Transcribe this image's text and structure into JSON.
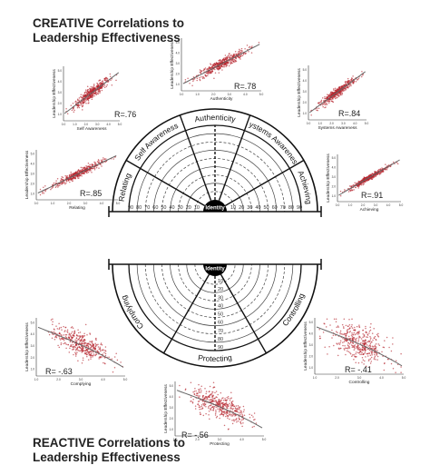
{
  "titles": {
    "creative_line1": "CREATIVE Correlations to",
    "creative_line2": "Leadership Effectiveness",
    "reactive_line1": "REACTIVE Correlations to",
    "reactive_line2": "Leadership Effectiveness"
  },
  "wheel_top": {
    "sectors": [
      "Relating",
      "Self Awareness",
      "Authenticity",
      "Systems Awareness",
      "Achieving"
    ],
    "center_label": "Identity",
    "scale_left": [
      "90",
      "80",
      "70",
      "60",
      "50",
      "40",
      "30",
      "20",
      "10"
    ],
    "scale_right": [
      "10",
      "20",
      "30",
      "40",
      "50",
      "60",
      "70",
      "80",
      "90"
    ]
  },
  "wheel_bottom": {
    "sectors": [
      "Complying",
      "Protecting",
      "Controlling"
    ],
    "center_label": "Identity",
    "scale_down": [
      "10",
      "20",
      "30",
      "40",
      "50",
      "60",
      "70",
      "80",
      "90"
    ]
  },
  "colors": {
    "dots": "#b5242c",
    "fit": "#666666",
    "wheel_line": "#111111",
    "identity_fill": "#000000"
  },
  "chart_data": [
    {
      "type": "scatter",
      "id": "self_awareness",
      "xlabel": "Self Awareness",
      "ylabel": "Leadership Effectiveness",
      "annotation": "R=.76",
      "trend": "positive",
      "r": 0.76,
      "xticks": [
        "0.0",
        "1.0",
        "2.0",
        "3.0",
        "4.0",
        "5.0"
      ],
      "yticks": [
        "1.0",
        "2.0",
        "3.0",
        "4.0",
        "5.0"
      ]
    },
    {
      "type": "scatter",
      "id": "authenticity",
      "xlabel": "Authenticity",
      "ylabel": "Leadership Effectiveness",
      "annotation": "R=.78",
      "trend": "positive",
      "r": 0.78,
      "xticks": [
        "0.0",
        "1.0",
        "2.0",
        "3.0",
        "4.0",
        "5.0"
      ],
      "yticks": [
        "1.0",
        "2.0",
        "3.0",
        "4.0",
        "5.0"
      ]
    },
    {
      "type": "scatter",
      "id": "systems_awareness",
      "xlabel": "Systems Awareness",
      "ylabel": "Leadership Effectiveness",
      "annotation": "R=.84",
      "trend": "positive",
      "r": 0.84,
      "xticks": [
        "0.0",
        "1.0",
        "2.0",
        "3.0",
        "4.0",
        "5.0"
      ],
      "yticks": [
        "1.0",
        "2.0",
        "3.0",
        "4.0",
        "5.0"
      ]
    },
    {
      "type": "scatter",
      "id": "relating",
      "xlabel": "Relating",
      "ylabel": "Leadership Effectiveness",
      "annotation": "R=.85",
      "trend": "positive",
      "r": 0.85,
      "xticks": [
        "0.0",
        "1.0",
        "2.0",
        "3.0",
        "4.0",
        "5.0"
      ],
      "yticks": [
        "1.0",
        "2.0",
        "3.0",
        "4.0",
        "5.0"
      ]
    },
    {
      "type": "scatter",
      "id": "achieving",
      "xlabel": "Achieving",
      "ylabel": "Leadership Effectiveness",
      "annotation": "R=.91",
      "trend": "positive",
      "r": 0.91,
      "xticks": [
        "0.0",
        "1.0",
        "2.0",
        "3.0",
        "4.0",
        "5.0"
      ],
      "yticks": [
        "1.0",
        "2.0",
        "3.0",
        "4.0",
        "5.0"
      ]
    },
    {
      "type": "scatter",
      "id": "complying",
      "xlabel": "Complying",
      "ylabel": "Leadership Effectiveness",
      "annotation": "R= -.63",
      "trend": "negative",
      "r": -0.63,
      "xticks": [
        "1.0",
        "2.0",
        "3.0",
        "4.0",
        "5.0"
      ],
      "yticks": [
        "1.0",
        "2.0",
        "3.0",
        "4.0",
        "5.0"
      ]
    },
    {
      "type": "scatter",
      "id": "protecting",
      "xlabel": "Protecting",
      "ylabel": "Leadership Effectiveness",
      "annotation": "R= -.56",
      "trend": "negative",
      "r": -0.56,
      "xticks": [
        "1.0",
        "2.0",
        "3.0",
        "4.0",
        "5.0"
      ],
      "yticks": [
        "1.0",
        "2.0",
        "3.0",
        "4.0",
        "5.0"
      ]
    },
    {
      "type": "scatter",
      "id": "controlling",
      "xlabel": "Controlling",
      "ylabel": "Leadership Effectiveness",
      "annotation": "R= -.41",
      "trend": "negative",
      "r": -0.41,
      "xticks": [
        "1.0",
        "2.0",
        "3.0",
        "4.0",
        "5.0"
      ],
      "yticks": [
        "1.0",
        "2.0",
        "3.0",
        "4.0",
        "5.0"
      ]
    }
  ]
}
